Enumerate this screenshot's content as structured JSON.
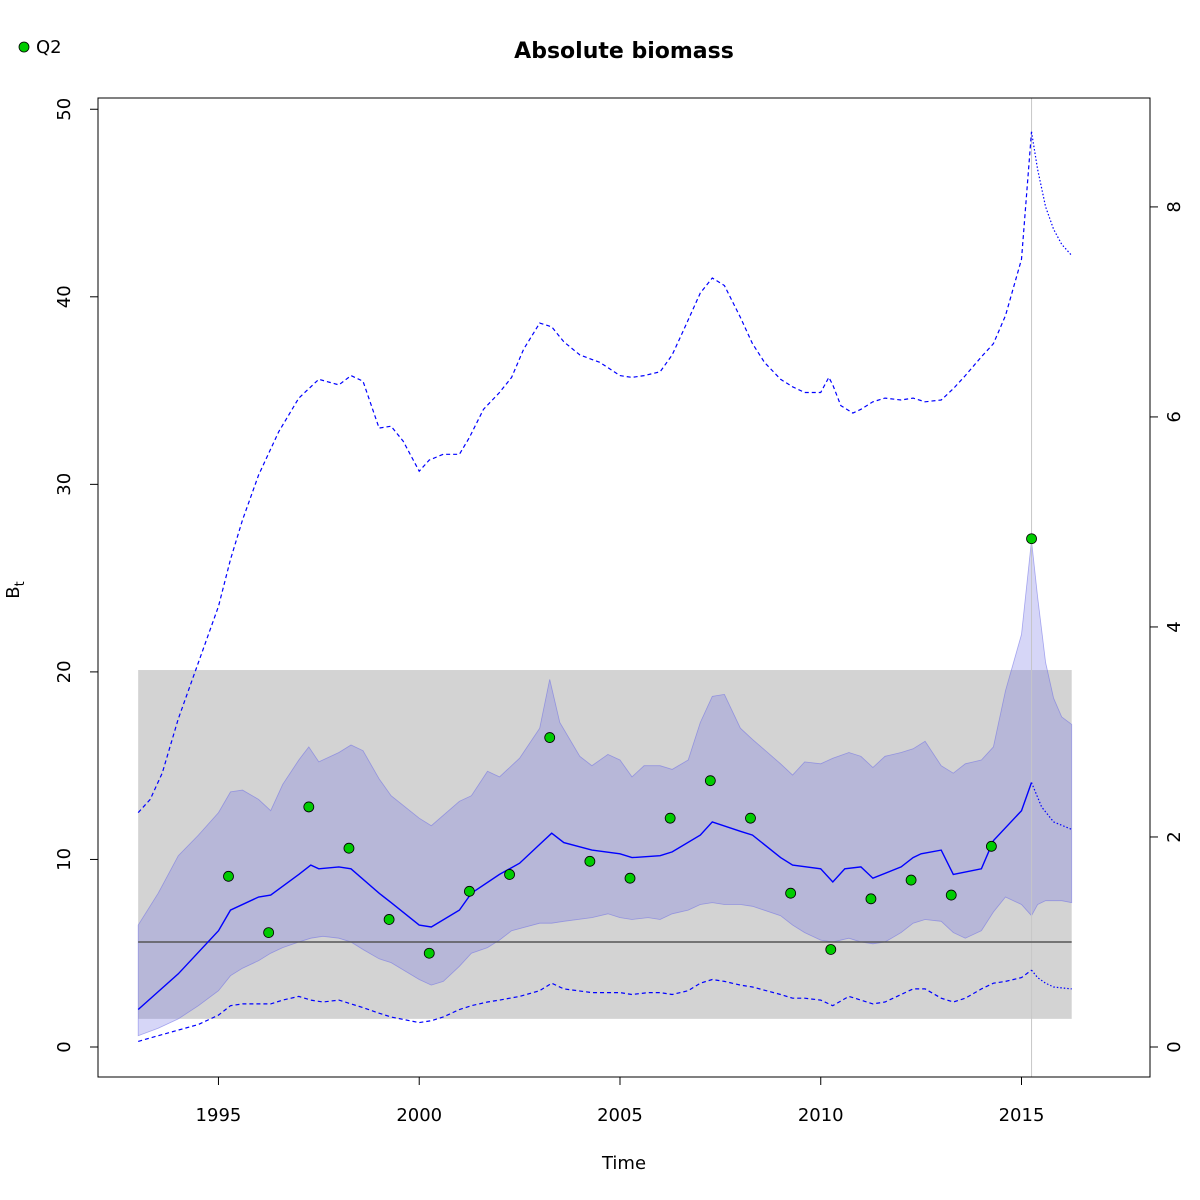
{
  "chart_data": {
    "type": "line",
    "title": "Absolute biomass",
    "xlabel": "Time",
    "ylabel": "B",
    "ylabel_subscript": "t",
    "xlim": [
      1992.0,
      2018.2
    ],
    "ylim": [
      -1.6,
      50.6
    ],
    "x_ticks": [
      1995,
      2000,
      2005,
      2010,
      2015
    ],
    "y_ticks": [
      0,
      10,
      20,
      30,
      40,
      50
    ],
    "y2_ticks": [
      0,
      2,
      4,
      6,
      8
    ],
    "y2_per_y": 0.1786,
    "legend": {
      "position": "top-left",
      "entries": [
        {
          "label": "Q2",
          "color": "#00cc00"
        }
      ]
    },
    "colors": {
      "estimate": "#0000ff",
      "band": "rgba(120,120,230,0.30)",
      "bmsy_band": "#d3d3d3",
      "bmsy_line": "#555555",
      "vline": "#c8c8c8",
      "points": "#00cc00"
    },
    "bmsy_band": {
      "x": [
        1993.0,
        2016.25
      ],
      "y": [
        1.5,
        20.1
      ]
    },
    "bmsy_line": 5.6,
    "vline_x": 2015.25,
    "series": [
      {
        "name": "Q2",
        "style": "points",
        "x": [
          1995.25,
          1996.25,
          1997.25,
          1998.25,
          1999.25,
          2000.25,
          2001.25,
          2002.25,
          2003.25,
          2004.25,
          2005.25,
          2006.25,
          2007.25,
          2008.25,
          2009.25,
          2010.25,
          2011.25,
          2012.25,
          2013.25,
          2014.25,
          2015.25
        ],
        "y": [
          9.1,
          6.1,
          12.8,
          10.6,
          6.8,
          5.0,
          8.3,
          9.2,
          16.5,
          9.9,
          9.0,
          12.2,
          14.2,
          12.2,
          8.2,
          5.2,
          7.9,
          8.9,
          8.1,
          10.7,
          27.1
        ]
      },
      {
        "style": "estimate",
        "x": [
          1993.0,
          1994.0,
          1995.0,
          1995.3,
          1996.0,
          1996.3,
          1997.0,
          1997.3,
          1997.5,
          1998.0,
          1998.3,
          1999.0,
          1999.3,
          2000.0,
          2000.3,
          2001.0,
          2001.3,
          2002.0,
          2002.5,
          2003.0,
          2003.3,
          2003.6,
          2004.3,
          2005.0,
          2005.3,
          2006.0,
          2006.3,
          2007.0,
          2007.3,
          2008.0,
          2008.3,
          2009.0,
          2009.3,
          2010.0,
          2010.3,
          2010.6,
          2011.0,
          2011.3,
          2012.0,
          2012.3,
          2012.5,
          2013.0,
          2013.3,
          2014.0,
          2014.3,
          2015.0,
          2015.25
        ],
        "y": [
          2.0,
          3.9,
          6.2,
          7.3,
          8.0,
          8.1,
          9.2,
          9.7,
          9.5,
          9.6,
          9.5,
          8.2,
          7.7,
          6.5,
          6.4,
          7.3,
          8.2,
          9.2,
          9.8,
          10.8,
          11.4,
          10.9,
          10.5,
          10.3,
          10.1,
          10.2,
          10.4,
          11.3,
          12.0,
          11.5,
          11.3,
          10.1,
          9.7,
          9.5,
          8.8,
          9.5,
          9.6,
          9.0,
          9.6,
          10.1,
          10.3,
          10.5,
          9.2,
          9.5,
          11.0,
          12.6,
          14.1
        ]
      },
      {
        "style": "prediction",
        "x": [
          2015.25,
          2015.5,
          2015.8,
          2016.25
        ],
        "y": [
          14.1,
          12.8,
          12.0,
          11.6
        ]
      },
      {
        "style": "ci_upper",
        "x": [
          1993.0,
          1993.5,
          1994.0,
          1994.5,
          1995.0,
          1995.3,
          1995.6,
          1996.0,
          1996.3,
          1996.6,
          1997.0,
          1997.25,
          1997.5,
          1998.0,
          1998.3,
          1998.6,
          1999.0,
          1999.3,
          2000.0,
          2000.3,
          2001.0,
          2001.3,
          2001.7,
          2002.0,
          2002.5,
          2003.0,
          2003.25,
          2003.5,
          2004.0,
          2004.3,
          2004.7,
          2005.0,
          2005.3,
          2005.6,
          2006.0,
          2006.3,
          2006.7,
          2007.0,
          2007.3,
          2007.6,
          2008.0,
          2008.3,
          2009.0,
          2009.3,
          2009.6,
          2010.0,
          2010.3,
          2010.7,
          2011.0,
          2011.3,
          2011.6,
          2012.0,
          2012.3,
          2012.6,
          2013.0,
          2013.3,
          2013.6,
          2014.0,
          2014.3,
          2014.6,
          2015.0,
          2015.25
        ],
        "y": [
          6.5,
          8.2,
          10.2,
          11.3,
          12.5,
          13.6,
          13.7,
          13.2,
          12.6,
          14.0,
          15.3,
          16.0,
          15.2,
          15.7,
          16.1,
          15.8,
          14.3,
          13.4,
          12.2,
          11.8,
          13.1,
          13.4,
          14.7,
          14.4,
          15.4,
          17.0,
          19.6,
          17.3,
          15.5,
          15.0,
          15.6,
          15.3,
          14.4,
          15.0,
          15.0,
          14.8,
          15.3,
          17.3,
          18.7,
          18.8,
          17.0,
          16.4,
          15.1,
          14.5,
          15.2,
          15.1,
          15.4,
          15.7,
          15.5,
          14.9,
          15.5,
          15.7,
          15.9,
          16.3,
          15.0,
          14.6,
          15.1,
          15.3,
          16.0,
          19.0,
          22.0,
          27.0
        ]
      },
      {
        "style": "ci_lower",
        "x": [
          1993.0,
          1993.5,
          1994.0,
          1994.5,
          1995.0,
          1995.3,
          1995.6,
          1996.0,
          1996.3,
          1996.6,
          1997.0,
          1997.3,
          1997.6,
          1998.0,
          1998.3,
          1998.6,
          1999.0,
          1999.3,
          2000.0,
          2000.3,
          2000.6,
          2001.0,
          2001.3,
          2001.7,
          2002.0,
          2002.3,
          2003.0,
          2003.3,
          2003.6,
          2004.3,
          2004.7,
          2005.0,
          2005.3,
          2005.7,
          2006.0,
          2006.3,
          2006.7,
          2007.0,
          2007.3,
          2007.6,
          2008.0,
          2008.3,
          2009.0,
          2009.3,
          2009.6,
          2010.0,
          2010.3,
          2010.7,
          2011.0,
          2011.3,
          2011.6,
          2012.0,
          2012.3,
          2012.6,
          2013.0,
          2013.3,
          2013.6,
          2014.0,
          2014.3,
          2014.6,
          2015.0,
          2015.25
        ],
        "y": [
          0.6,
          1.0,
          1.5,
          2.2,
          3.0,
          3.8,
          4.2,
          4.6,
          5.0,
          5.3,
          5.6,
          5.8,
          5.9,
          5.8,
          5.6,
          5.2,
          4.7,
          4.5,
          3.6,
          3.3,
          3.5,
          4.3,
          5.0,
          5.3,
          5.7,
          6.2,
          6.6,
          6.6,
          6.7,
          6.9,
          7.1,
          6.9,
          6.8,
          6.9,
          6.8,
          7.1,
          7.3,
          7.6,
          7.7,
          7.6,
          7.6,
          7.5,
          7.0,
          6.5,
          6.1,
          5.7,
          5.6,
          5.8,
          5.6,
          5.5,
          5.6,
          6.1,
          6.6,
          6.8,
          6.7,
          6.1,
          5.8,
          6.2,
          7.2,
          8.0,
          7.6,
          7.0
        ]
      },
      {
        "style": "ci_pred_upper",
        "x": [
          2015.25,
          2015.4,
          2015.6,
          2015.8,
          2016.0,
          2016.25
        ],
        "y": [
          27.0,
          24.0,
          20.5,
          18.6,
          17.6,
          17.2
        ]
      },
      {
        "style": "ci_pred_lower",
        "x": [
          2015.25,
          2015.4,
          2015.6,
          2015.8,
          2016.0,
          2016.25
        ],
        "y": [
          7.0,
          7.6,
          7.8,
          7.8,
          7.8,
          7.7
        ]
      },
      {
        "style": "dashed_upper",
        "x": [
          1993.0,
          1993.3,
          1993.6,
          1994.0,
          1994.5,
          1995.0,
          1995.3,
          1995.6,
          1996.0,
          1996.5,
          1997.0,
          1997.5,
          1998.0,
          1998.3,
          1998.6,
          1999.0,
          1999.3,
          1999.6,
          2000.0,
          2000.25,
          2000.6,
          2001.0,
          2001.25,
          2001.6,
          2002.0,
          2002.3,
          2002.6,
          2003.0,
          2003.3,
          2003.6,
          2004.0,
          2004.5,
          2005.0,
          2005.3,
          2005.6,
          2006.0,
          2006.3,
          2006.6,
          2007.0,
          2007.3,
          2007.6,
          2008.0,
          2008.3,
          2008.6,
          2009.0,
          2009.3,
          2009.6,
          2010.0,
          2010.2,
          2010.3,
          2010.5,
          2010.8,
          2011.0,
          2011.3,
          2011.6,
          2012.0,
          2012.3,
          2012.6,
          2013.0,
          2013.3,
          2013.6,
          2014.0,
          2014.3,
          2014.6,
          2015.0,
          2015.25
        ],
        "y": [
          12.5,
          13.2,
          14.6,
          17.5,
          20.5,
          23.5,
          26.0,
          28.1,
          30.5,
          32.8,
          34.6,
          35.6,
          35.3,
          35.8,
          35.5,
          33.0,
          33.1,
          32.3,
          30.7,
          31.3,
          31.6,
          31.6,
          32.5,
          34.0,
          34.9,
          35.7,
          37.2,
          38.6,
          38.4,
          37.6,
          36.9,
          36.5,
          35.8,
          35.7,
          35.8,
          36.0,
          36.9,
          38.3,
          40.2,
          41.0,
          40.6,
          38.9,
          37.5,
          36.5,
          35.6,
          35.2,
          34.9,
          34.9,
          35.7,
          35.3,
          34.2,
          33.8,
          34.0,
          34.4,
          34.6,
          34.5,
          34.6,
          34.4,
          34.5,
          35.1,
          35.8,
          36.8,
          37.5,
          39.0,
          42.0,
          48.8
        ]
      },
      {
        "style": "dashed_lower",
        "x": [
          1993.0,
          1993.5,
          1994.0,
          1994.5,
          1995.0,
          1995.3,
          1995.6,
          1996.0,
          1996.3,
          1996.6,
          1997.0,
          1997.3,
          1997.6,
          1998.0,
          1998.3,
          1998.6,
          1999.0,
          1999.3,
          2000.0,
          2000.3,
          2000.6,
          2001.0,
          2001.3,
          2001.7,
          2002.0,
          2002.5,
          2003.0,
          2003.3,
          2003.6,
          2004.3,
          2004.7,
          2005.0,
          2005.3,
          2005.7,
          2006.0,
          2006.3,
          2006.7,
          2007.0,
          2007.3,
          2007.6,
          2008.0,
          2008.3,
          2009.0,
          2009.3,
          2009.6,
          2010.0,
          2010.3,
          2010.7,
          2011.0,
          2011.3,
          2011.6,
          2012.0,
          2012.3,
          2012.6,
          2013.0,
          2013.3,
          2013.6,
          2014.0,
          2014.3,
          2014.6,
          2015.0,
          2015.25
        ],
        "y": [
          0.3,
          0.6,
          0.9,
          1.2,
          1.7,
          2.2,
          2.3,
          2.3,
          2.3,
          2.5,
          2.7,
          2.5,
          2.4,
          2.5,
          2.3,
          2.1,
          1.8,
          1.6,
          1.3,
          1.4,
          1.6,
          2.0,
          2.2,
          2.4,
          2.5,
          2.7,
          3.0,
          3.4,
          3.1,
          2.9,
          2.9,
          2.9,
          2.8,
          2.9,
          2.9,
          2.8,
          3.0,
          3.4,
          3.6,
          3.5,
          3.3,
          3.2,
          2.8,
          2.6,
          2.6,
          2.5,
          2.2,
          2.7,
          2.5,
          2.3,
          2.4,
          2.8,
          3.1,
          3.1,
          2.6,
          2.4,
          2.6,
          3.1,
          3.4,
          3.5,
          3.7,
          4.1
        ]
      },
      {
        "style": "dotted_upper",
        "x": [
          2015.25,
          2015.4,
          2015.6,
          2015.8,
          2016.0,
          2016.25
        ],
        "y": [
          48.8,
          46.8,
          44.8,
          43.6,
          42.8,
          42.2
        ]
      },
      {
        "style": "dotted_lower",
        "x": [
          2015.25,
          2015.4,
          2015.6,
          2015.8,
          2016.0,
          2016.25
        ],
        "y": [
          4.1,
          3.7,
          3.4,
          3.2,
          3.15,
          3.1
        ]
      }
    ]
  }
}
